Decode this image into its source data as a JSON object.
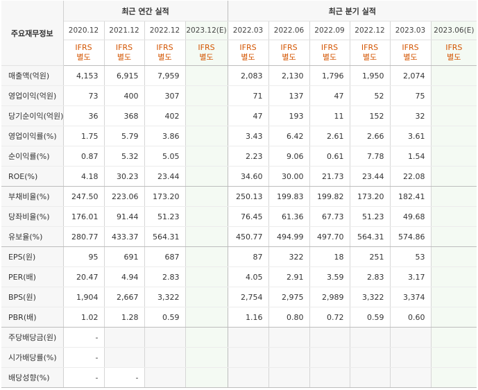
{
  "header": {
    "row_label": "주요재무정보",
    "annual_group": "최근 연간 실적",
    "quarter_group": "최근 분기 실적",
    "ifrs_label": "IFRS",
    "basis_label": "별도"
  },
  "annual_periods": [
    "2020.12",
    "2021.12",
    "2022.12",
    "2023.12(E)"
  ],
  "quarter_periods": [
    "2022.03",
    "2022.06",
    "2022.09",
    "2022.12",
    "2023.03",
    "2023.06(E)"
  ],
  "rows": [
    {
      "label": "매출액(억원)",
      "annual": [
        "4,153",
        "6,915",
        "7,959",
        ""
      ],
      "quarter": [
        "2,083",
        "2,130",
        "1,796",
        "1,950",
        "2,074",
        ""
      ]
    },
    {
      "label": "영업이익(억원)",
      "annual": [
        "73",
        "400",
        "307",
        ""
      ],
      "quarter": [
        "71",
        "137",
        "47",
        "52",
        "75",
        ""
      ]
    },
    {
      "label": "당기순이익(억원)",
      "annual": [
        "36",
        "368",
        "402",
        ""
      ],
      "quarter": [
        "47",
        "193",
        "11",
        "152",
        "32",
        ""
      ]
    },
    {
      "label": "영업이익률(%)",
      "annual": [
        "1.75",
        "5.79",
        "3.86",
        ""
      ],
      "quarter": [
        "3.43",
        "6.42",
        "2.61",
        "2.66",
        "3.61",
        ""
      ]
    },
    {
      "label": "순이익률(%)",
      "annual": [
        "0.87",
        "5.32",
        "5.05",
        ""
      ],
      "quarter": [
        "2.23",
        "9.06",
        "0.61",
        "7.78",
        "1.54",
        ""
      ]
    },
    {
      "label": "ROE(%)",
      "annual": [
        "4.18",
        "30.23",
        "23.44",
        ""
      ],
      "quarter": [
        "34.60",
        "30.00",
        "21.73",
        "23.44",
        "22.08",
        ""
      ]
    },
    {
      "label": "부채비율(%)",
      "annual": [
        "247.50",
        "223.06",
        "173.20",
        ""
      ],
      "quarter": [
        "250.13",
        "199.83",
        "199.82",
        "173.20",
        "182.41",
        ""
      ]
    },
    {
      "label": "당좌비율(%)",
      "annual": [
        "176.01",
        "91.44",
        "51.23",
        ""
      ],
      "quarter": [
        "76.45",
        "61.36",
        "67.73",
        "51.23",
        "49.68",
        ""
      ]
    },
    {
      "label": "유보율(%)",
      "annual": [
        "280.77",
        "433.37",
        "564.31",
        ""
      ],
      "quarter": [
        "450.77",
        "494.99",
        "497.70",
        "564.31",
        "574.86",
        ""
      ]
    },
    {
      "label": "EPS(원)",
      "annual": [
        "95",
        "691",
        "687",
        ""
      ],
      "quarter": [
        "87",
        "322",
        "18",
        "251",
        "53",
        ""
      ]
    },
    {
      "label": "PER(배)",
      "annual": [
        "20.47",
        "4.94",
        "2.83",
        ""
      ],
      "quarter": [
        "4.05",
        "2.91",
        "3.59",
        "2.83",
        "3.17",
        ""
      ]
    },
    {
      "label": "BPS(원)",
      "annual": [
        "1,904",
        "2,667",
        "3,322",
        ""
      ],
      "quarter": [
        "2,754",
        "2,975",
        "2,989",
        "3,322",
        "3,374",
        ""
      ]
    },
    {
      "label": "PBR(배)",
      "annual": [
        "1.02",
        "1.28",
        "0.59",
        ""
      ],
      "quarter": [
        "1.16",
        "0.80",
        "0.72",
        "0.59",
        "0.60",
        ""
      ]
    },
    {
      "label": "주당배당금(원)",
      "annual": [
        "-",
        "",
        "",
        ""
      ],
      "quarter": [
        "",
        "",
        "",
        "",
        "",
        ""
      ]
    },
    {
      "label": "시가배당률(%)",
      "annual": [
        "-",
        "",
        "",
        ""
      ],
      "quarter": [
        "",
        "",
        "",
        "",
        "",
        ""
      ]
    },
    {
      "label": "배당성향(%)",
      "annual": [
        "-",
        "-",
        "",
        ""
      ],
      "quarter": [
        "",
        "",
        "",
        "",
        "",
        ""
      ]
    }
  ],
  "colors": {
    "header_bg": "#f7f7f7",
    "estimate_bg": "#f4faf3",
    "ifrs_accent": "#d35400",
    "border": "#bdbdbd"
  }
}
